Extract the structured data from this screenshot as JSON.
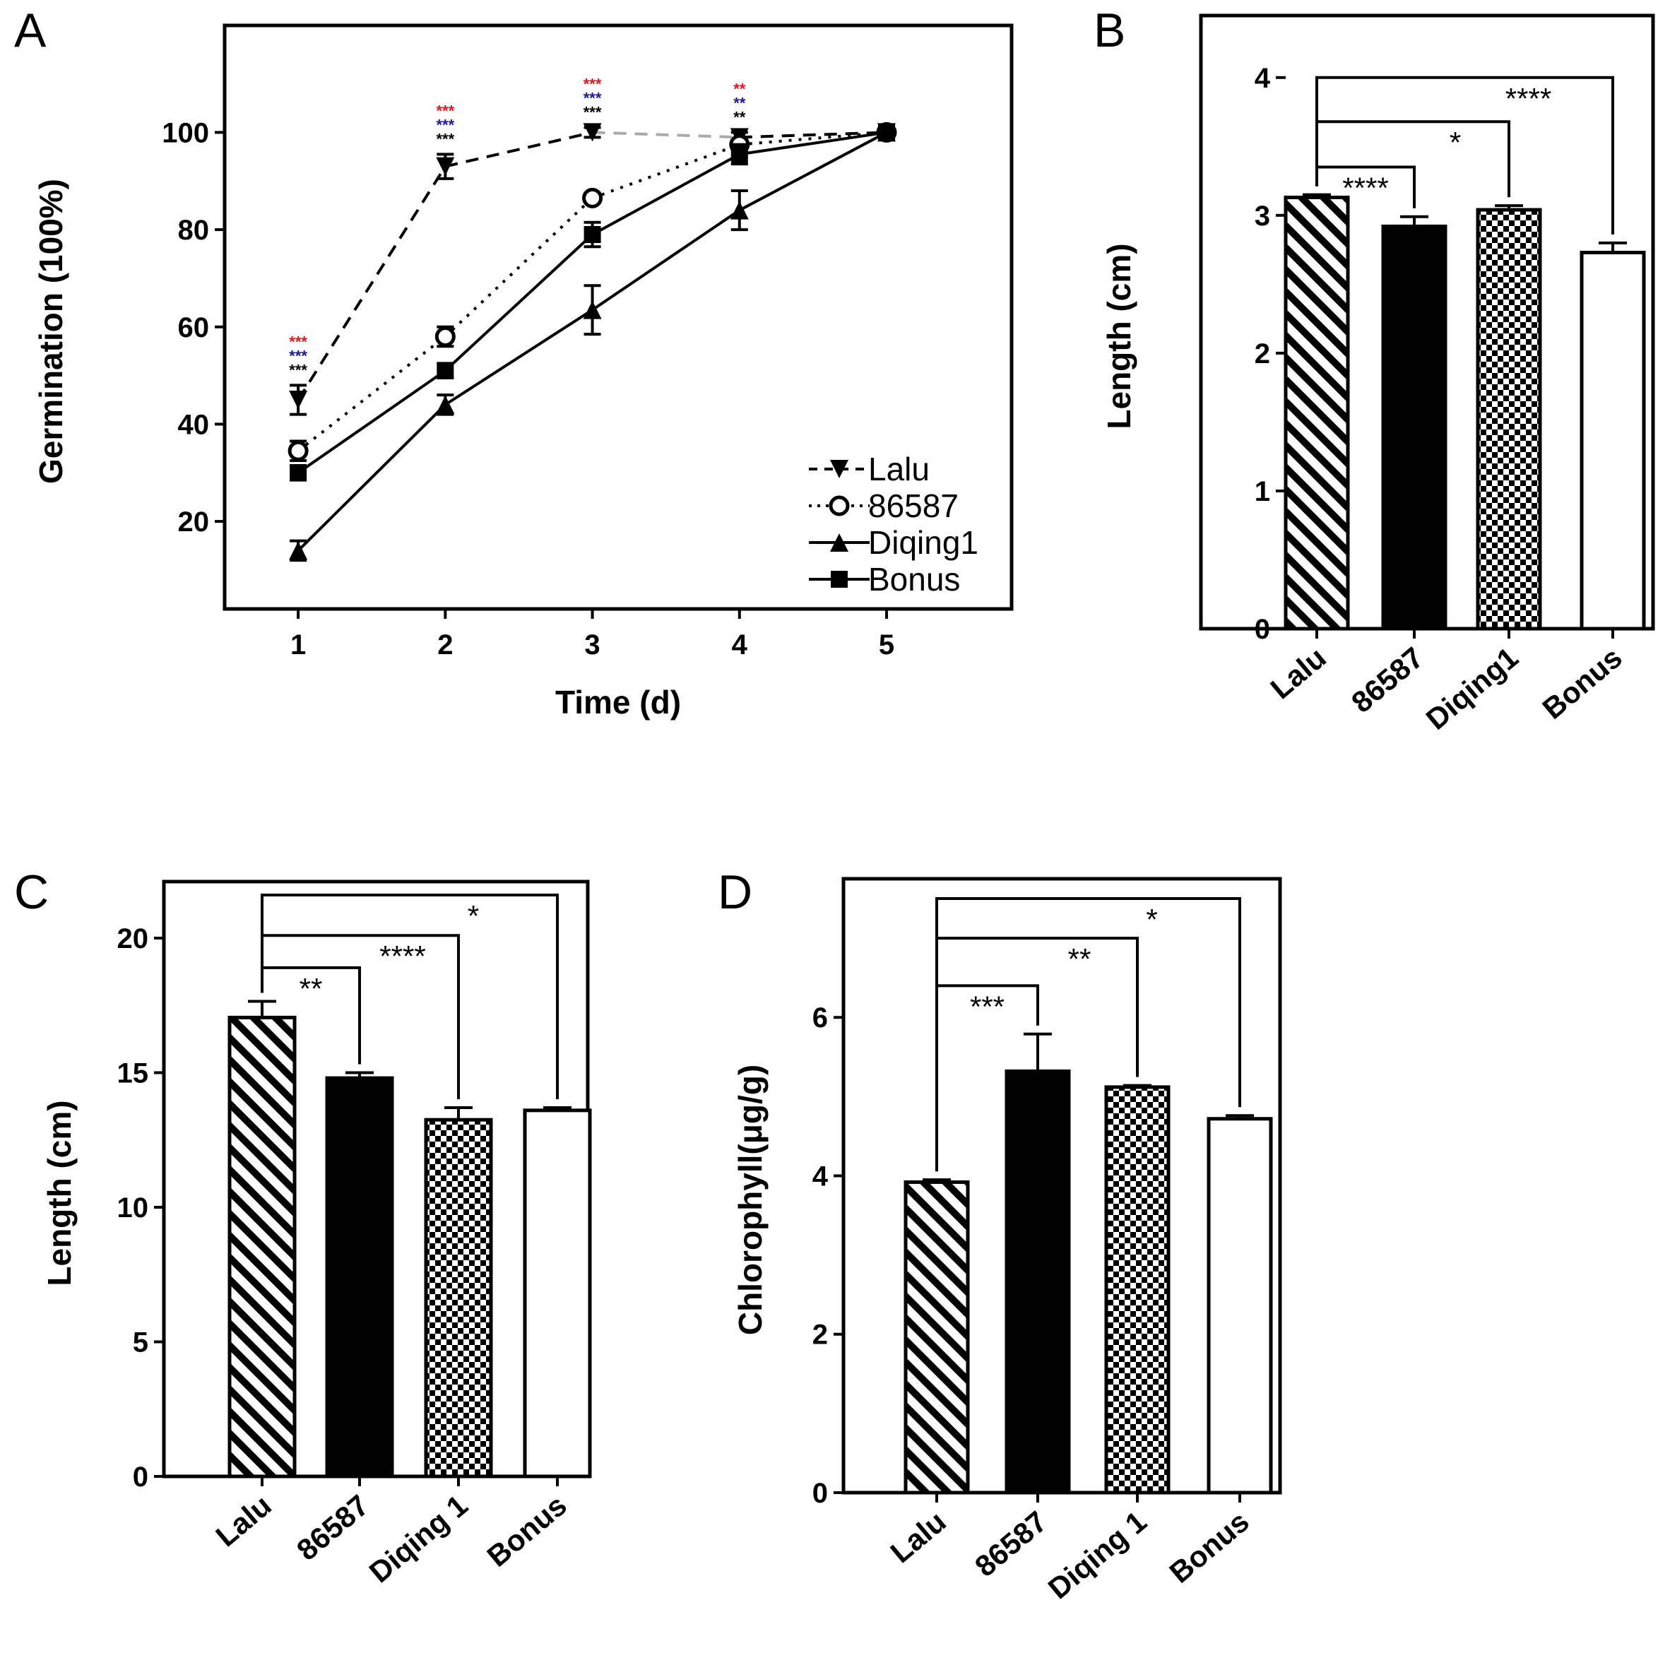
{
  "chart_data": [
    {
      "panel": "A",
      "type": "line",
      "xlabel": "Time (d)",
      "ylabel": "Germination (100%)",
      "x": [
        1,
        2,
        3,
        4,
        5
      ],
      "xticks": [
        "1",
        "2",
        "3",
        "4",
        "5"
      ],
      "yticks": [
        "20",
        "40",
        "60",
        "80",
        "100"
      ],
      "xlim": [
        0.5,
        5.85
      ],
      "ylim": [
        2,
        122
      ],
      "legend_position": "bottom-right",
      "series": [
        {
          "name": "Lalu",
          "marker": "triangle-down",
          "line": "dashed",
          "values": [
            45,
            93,
            100,
            99,
            100
          ],
          "errors": [
            3,
            2.5,
            1,
            1,
            0
          ]
        },
        {
          "name": "86587",
          "marker": "circle-open",
          "line": "dotted",
          "values": [
            34.5,
            58,
            86.5,
            97.5,
            100
          ],
          "errors": [
            2,
            2,
            1,
            1,
            0
          ]
        },
        {
          "name": "Diqing1",
          "marker": "triangle-up",
          "line": "solid",
          "values": [
            14,
            44,
            63.5,
            84,
            100
          ],
          "errors": [
            2,
            2,
            5,
            4,
            0
          ]
        },
        {
          "name": "Bonus",
          "marker": "square",
          "line": "solid",
          "values": [
            30,
            51,
            79,
            95.5,
            100
          ],
          "errors": [
            1.5,
            1.5,
            2.5,
            2,
            0
          ]
        }
      ],
      "annotations": [
        {
          "x": 1,
          "labels": [
            {
              "text": "***",
              "color": "#e8161b"
            },
            {
              "text": "***",
              "color": "#1a1a9e"
            },
            {
              "text": "***",
              "color": "#000000"
            }
          ]
        },
        {
          "x": 2,
          "labels": [
            {
              "text": "***",
              "color": "#e8161b"
            },
            {
              "text": "***",
              "color": "#1a1a9e"
            },
            {
              "text": "***",
              "color": "#000000"
            }
          ]
        },
        {
          "x": 3,
          "labels": [
            {
              "text": "***",
              "color": "#e8161b"
            },
            {
              "text": "***",
              "color": "#1a1a9e"
            },
            {
              "text": "***",
              "color": "#000000"
            }
          ]
        },
        {
          "x": 4,
          "labels": [
            {
              "text": "**",
              "color": "#e8161b"
            },
            {
              "text": "**",
              "color": "#1a1a9e"
            },
            {
              "text": "**",
              "color": "#000000"
            }
          ]
        }
      ]
    },
    {
      "panel": "B",
      "type": "bar",
      "ylabel": "Length (cm)",
      "categories": [
        "Lalu",
        "86587",
        "Diqing1",
        "Bonus"
      ],
      "values": [
        3.13,
        2.92,
        3.04,
        2.73
      ],
      "errors": [
        0.02,
        0.07,
        0.03,
        0.07
      ],
      "fills": [
        "diagonal",
        "solid",
        "checker",
        "white"
      ],
      "yticks": [
        "0",
        "1",
        "2",
        "3",
        "4"
      ],
      "ylim": [
        0,
        4.45
      ],
      "significance": [
        {
          "from": 0,
          "to": 1,
          "label": "****",
          "y": 3.35
        },
        {
          "from": 0,
          "to": 2,
          "label": "*",
          "y": 3.68
        },
        {
          "from": 0,
          "to": 3,
          "label": "****",
          "y": 4.0
        }
      ]
    },
    {
      "panel": "C",
      "type": "bar",
      "ylabel": "Length (cm)",
      "categories": [
        "Lalu",
        "86587",
        "Diqing 1",
        "Bonus"
      ],
      "values": [
        17.05,
        14.8,
        13.25,
        13.6
      ],
      "errors": [
        0.6,
        0.2,
        0.45,
        0.1
      ],
      "fills": [
        "diagonal",
        "solid",
        "checker",
        "white"
      ],
      "yticks": [
        "0",
        "5",
        "10",
        "15",
        "20"
      ],
      "ylim": [
        0,
        22.1
      ],
      "significance": [
        {
          "from": 0,
          "to": 1,
          "label": "**",
          "y": 18.9
        },
        {
          "from": 0,
          "to": 2,
          "label": "****",
          "y": 20.1
        },
        {
          "from": 0,
          "to": 3,
          "label": "*",
          "y": 21.6
        }
      ]
    },
    {
      "panel": "D",
      "type": "bar",
      "ylabel": "Chlorophyll(μg/g)",
      "categories": [
        "Lalu",
        "86587",
        "Diqing 1",
        "Bonus"
      ],
      "values": [
        3.92,
        5.32,
        5.12,
        4.72
      ],
      "errors": [
        0.03,
        0.47,
        0.02,
        0.04
      ],
      "fills": [
        "diagonal",
        "solid",
        "checker",
        "white"
      ],
      "yticks": [
        "0",
        "2",
        "4",
        "6"
      ],
      "ylim": [
        0,
        7.75
      ],
      "significance": [
        {
          "from": 0,
          "to": 1,
          "label": "***",
          "y": 6.4
        },
        {
          "from": 0,
          "to": 2,
          "label": "**",
          "y": 7.0
        },
        {
          "from": 0,
          "to": 3,
          "label": "*",
          "y": 7.5
        }
      ]
    }
  ]
}
